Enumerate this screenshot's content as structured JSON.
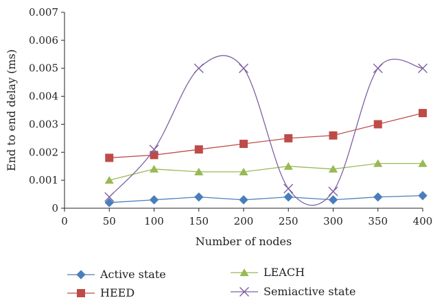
{
  "chart_data": {
    "type": "line",
    "title": "",
    "xlabel": "Number of nodes",
    "ylabel": "End to end delay (ms)",
    "x": [
      50,
      100,
      150,
      200,
      250,
      300,
      350,
      400
    ],
    "xlim": [
      0,
      400
    ],
    "xticks": [
      "0",
      "50",
      "100",
      "150",
      "200",
      "250",
      "300",
      "350",
      "400"
    ],
    "ylim": [
      0,
      0.007
    ],
    "yticks": [
      "0",
      "0.001",
      "0.002",
      "0.003",
      "0.004",
      "0.005",
      "0.006",
      "0.007"
    ],
    "grid": false,
    "legend_position": "bottom",
    "series": [
      {
        "name": "Active state",
        "values": [
          0.0002,
          0.0003,
          0.0004,
          0.0003,
          0.0004,
          0.0003,
          0.0004,
          0.00045
        ],
        "color": "#4a7ebb",
        "marker": "diamond",
        "smooth": false
      },
      {
        "name": "HEED",
        "values": [
          0.0018,
          0.0019,
          0.0021,
          0.0023,
          0.0025,
          0.0026,
          0.003,
          0.0034
        ],
        "color": "#be4b48",
        "marker": "square",
        "smooth": false
      },
      {
        "name": "LEACH",
        "values": [
          0.001,
          0.0014,
          0.0013,
          0.0013,
          0.0015,
          0.0014,
          0.0016,
          0.0016
        ],
        "color": "#98b954",
        "marker": "triangle",
        "smooth": false
      },
      {
        "name": "Semiactive state",
        "values": [
          0.0004,
          0.0021,
          0.005,
          0.005,
          0.0007,
          0.0006,
          0.005,
          0.005
        ],
        "color": "#7d60a0",
        "marker": "x",
        "smooth": true
      }
    ]
  }
}
